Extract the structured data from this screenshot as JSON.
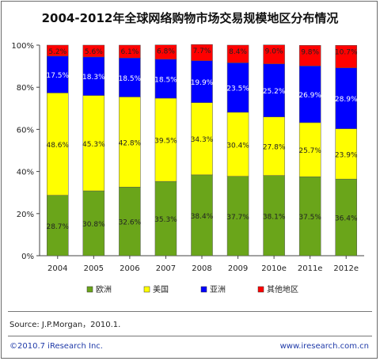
{
  "chart_data": {
    "type": "bar",
    "stacked": true,
    "title": "2004-2012年全球网络购物市场交易规模地区分布情况",
    "categories": [
      "2004",
      "2005",
      "2006",
      "2007",
      "2008",
      "2009",
      "2010e",
      "2011e",
      "2012e"
    ],
    "series": [
      {
        "name": "欧洲",
        "color": "#6aa51a",
        "values": [
          28.7,
          30.8,
          32.6,
          35.3,
          38.4,
          37.7,
          38.1,
          37.5,
          36.4
        ]
      },
      {
        "name": "美国",
        "color": "#ffff00",
        "values": [
          48.6,
          45.3,
          42.8,
          39.5,
          34.3,
          30.4,
          27.8,
          25.7,
          23.9
        ]
      },
      {
        "name": "亚洲",
        "color": "#0000ff",
        "values": [
          17.5,
          18.3,
          18.5,
          18.5,
          19.9,
          23.5,
          25.2,
          26.9,
          28.9
        ]
      },
      {
        "name": "其他地区",
        "color": "#ff0000",
        "values": [
          5.2,
          5.6,
          6.1,
          6.8,
          7.7,
          8.4,
          9.0,
          9.8,
          10.7
        ]
      }
    ],
    "data_labels": [
      [
        "28.7%",
        "30.8%",
        "32.6%",
        "35.3%",
        "38.4%",
        "37.7%",
        "38.1%",
        "37.5%",
        "36.4%"
      ],
      [
        "48.6%",
        "45.3%",
        "42.8%",
        "39.5%",
        "34.3%",
        "30.4%",
        "27.8%",
        "25.7%",
        "23.9%"
      ],
      [
        "17.5%",
        "18.3%",
        "18.5%",
        "18.5%",
        "19.9%",
        "23.5%",
        "25.2%",
        "26.9%",
        "28.9%"
      ],
      [
        "5.2%",
        "5.6%",
        "6.1%",
        "6.8%",
        "7.7%",
        "8.4%",
        "9.0%",
        "9.8%",
        "10.7%"
      ]
    ],
    "y_ticks": [
      "0%",
      "20%",
      "40%",
      "60%",
      "80%",
      "100%"
    ],
    "ylim": [
      0,
      100
    ],
    "grid": false,
    "legend_position": "bottom"
  },
  "source": "Source: J.P.Morgan，2010.1.",
  "footer": {
    "copyright": "©2010.7 iResearch Inc.",
    "website": "www.iresearch.com.cn"
  }
}
